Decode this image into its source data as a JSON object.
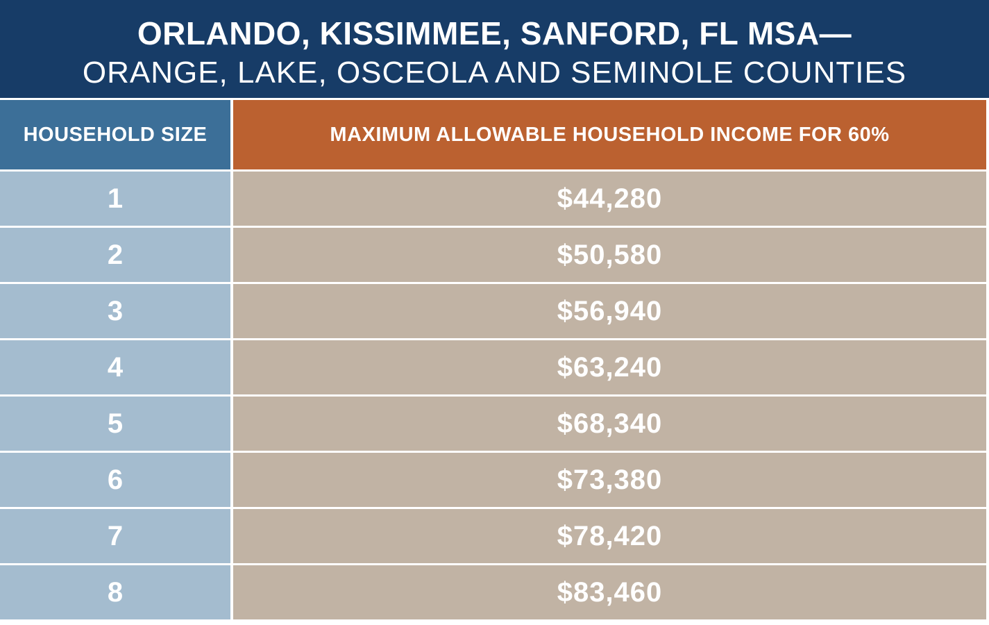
{
  "title": {
    "line1": "ORLANDO, KISSIMMEE, SANFORD, FL MSA—",
    "line2": "ORANGE, LAKE, OSCEOLA AND SEMINOLE COUNTIES"
  },
  "table": {
    "headers": {
      "household_size": "HOUSEHOLD SIZE",
      "max_income": "MAXIMUM ALLOWABLE HOUSEHOLD INCOME FOR 60%"
    },
    "rows": [
      {
        "size": "1",
        "income": "$44,280"
      },
      {
        "size": "2",
        "income": "$50,580"
      },
      {
        "size": "3",
        "income": "$56,940"
      },
      {
        "size": "4",
        "income": "$63,240"
      },
      {
        "size": "5",
        "income": "$68,340"
      },
      {
        "size": "6",
        "income": "$73,380"
      },
      {
        "size": "7",
        "income": "$78,420"
      },
      {
        "size": "8",
        "income": "$83,460"
      }
    ]
  },
  "colors": {
    "title_bg": "#173c67",
    "header_size_bg": "#3c6f98",
    "header_income_bg": "#bb6130",
    "size_cell_bg": "#a4bccf",
    "income_cell_bg": "#c1b3a4",
    "text": "#ffffff"
  }
}
